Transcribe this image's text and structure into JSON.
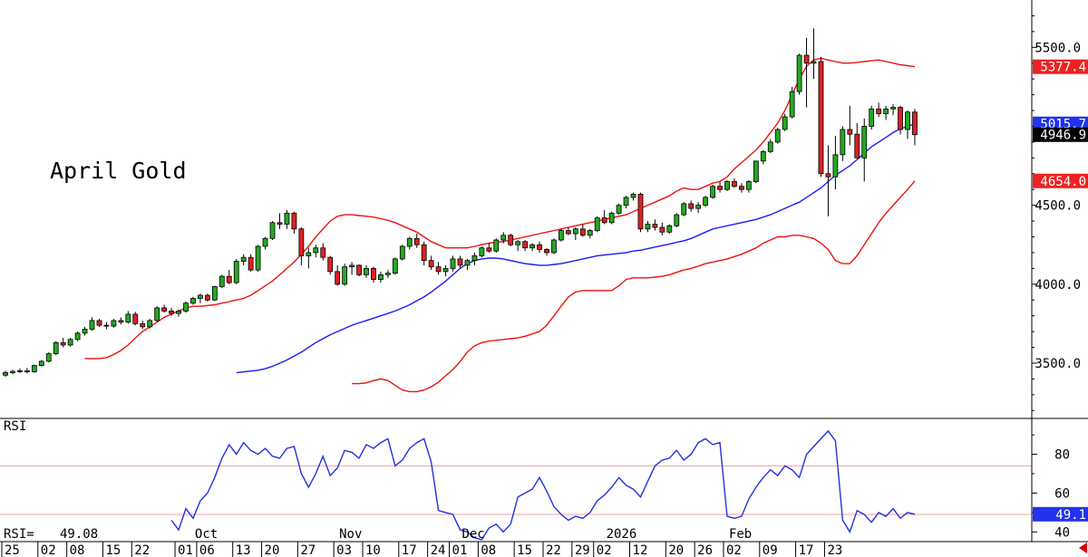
{
  "chart_data": [
    {
      "type": "candlestick",
      "title": "April Gold",
      "ylim": [
        3150,
        5800
      ],
      "yticks": [
        3500,
        4000,
        4500,
        5000,
        5500
      ],
      "ytick_labels": [
        "3500.0",
        "4000.0",
        "4500.0",
        "5000.0",
        "5500.0"
      ],
      "last_price_label": "4946.9",
      "bb_upper_label": "5377.4",
      "bb_lower_label": "4654.0",
      "ma_label": "5015.7",
      "colors": {
        "up": "#22aa22",
        "down": "#dd2222",
        "ma": "#1a1aff",
        "bands": "#ee1111"
      },
      "candles": [
        [
          3424,
          3452,
          3414,
          3440
        ],
        [
          3440,
          3458,
          3430,
          3448
        ],
        [
          3448,
          3465,
          3438,
          3452
        ],
        [
          3452,
          3470,
          3435,
          3445
        ],
        [
          3445,
          3490,
          3440,
          3485
        ],
        [
          3485,
          3520,
          3478,
          3512
        ],
        [
          3512,
          3570,
          3505,
          3560
        ],
        [
          3560,
          3640,
          3550,
          3630
        ],
        [
          3630,
          3660,
          3600,
          3615
        ],
        [
          3615,
          3660,
          3605,
          3650
        ],
        [
          3650,
          3700,
          3640,
          3690
        ],
        [
          3690,
          3730,
          3675,
          3715
        ],
        [
          3715,
          3790,
          3705,
          3770
        ],
        [
          3770,
          3780,
          3730,
          3740
        ],
        [
          3740,
          3760,
          3715,
          3735
        ],
        [
          3735,
          3780,
          3725,
          3770
        ],
        [
          3770,
          3790,
          3745,
          3760
        ],
        [
          3760,
          3830,
          3750,
          3810
        ],
        [
          3810,
          3825,
          3740,
          3750
        ],
        [
          3750,
          3770,
          3715,
          3730
        ],
        [
          3730,
          3780,
          3720,
          3770
        ],
        [
          3770,
          3860,
          3760,
          3850
        ],
        [
          3850,
          3870,
          3820,
          3830
        ],
        [
          3830,
          3850,
          3800,
          3815
        ],
        [
          3815,
          3840,
          3795,
          3830
        ],
        [
          3830,
          3890,
          3820,
          3880
        ],
        [
          3880,
          3920,
          3870,
          3910
        ],
        [
          3910,
          3940,
          3880,
          3930
        ],
        [
          3930,
          3940,
          3890,
          3900
        ],
        [
          3900,
          3990,
          3895,
          3985
        ],
        [
          3985,
          4060,
          3975,
          4050
        ],
        [
          4050,
          4090,
          4000,
          4010
        ],
        [
          4010,
          4160,
          4000,
          4145
        ],
        [
          4145,
          4190,
          4120,
          4170
        ],
        [
          4170,
          4190,
          4080,
          4090
        ],
        [
          4090,
          4250,
          4080,
          4240
        ],
        [
          4240,
          4300,
          4220,
          4290
        ],
        [
          4290,
          4400,
          4280,
          4390
        ],
        [
          4390,
          4450,
          4350,
          4380
        ],
        [
          4380,
          4470,
          4350,
          4450
        ],
        [
          4450,
          4460,
          4320,
          4350
        ],
        [
          4350,
          4360,
          4120,
          4180
        ],
        [
          4180,
          4230,
          4100,
          4200
        ],
        [
          4200,
          4250,
          4170,
          4230
        ],
        [
          4230,
          4260,
          4150,
          4170
        ],
        [
          4170,
          4180,
          4060,
          4080
        ],
        [
          4080,
          4120,
          3990,
          4000
        ],
        [
          4000,
          4130,
          3990,
          4110
        ],
        [
          4110,
          4140,
          4060,
          4120
        ],
        [
          4120,
          4125,
          4050,
          4060
        ],
        [
          4060,
          4120,
          4040,
          4100
        ],
        [
          4100,
          4110,
          4010,
          4030
        ],
        [
          4030,
          4080,
          4010,
          4060
        ],
        [
          4060,
          4090,
          4040,
          4070
        ],
        [
          4070,
          4170,
          4060,
          4160
        ],
        [
          4160,
          4250,
          4150,
          4240
        ],
        [
          4240,
          4300,
          4220,
          4290
        ],
        [
          4290,
          4320,
          4230,
          4250
        ],
        [
          4250,
          4270,
          4120,
          4150
        ],
        [
          4150,
          4180,
          4090,
          4110
        ],
        [
          4110,
          4140,
          4060,
          4080
        ],
        [
          4080,
          4120,
          4050,
          4100
        ],
        [
          4100,
          4180,
          4080,
          4160
        ],
        [
          4160,
          4180,
          4100,
          4120
        ],
        [
          4120,
          4160,
          4090,
          4150
        ],
        [
          4150,
          4200,
          4120,
          4180
        ],
        [
          4180,
          4240,
          4170,
          4230
        ],
        [
          4230,
          4260,
          4200,
          4210
        ],
        [
          4210,
          4290,
          4200,
          4280
        ],
        [
          4280,
          4330,
          4260,
          4310
        ],
        [
          4310,
          4320,
          4240,
          4250
        ],
        [
          4250,
          4280,
          4210,
          4270
        ],
        [
          4270,
          4280,
          4210,
          4230
        ],
        [
          4230,
          4260,
          4210,
          4250
        ],
        [
          4250,
          4270,
          4200,
          4220
        ],
        [
          4220,
          4230,
          4180,
          4200
        ],
        [
          4200,
          4290,
          4190,
          4280
        ],
        [
          4280,
          4350,
          4270,
          4340
        ],
        [
          4340,
          4360,
          4310,
          4320
        ],
        [
          4320,
          4360,
          4280,
          4350
        ],
        [
          4350,
          4380,
          4300,
          4310
        ],
        [
          4310,
          4350,
          4290,
          4340
        ],
        [
          4340,
          4430,
          4330,
          4420
        ],
        [
          4420,
          4470,
          4380,
          4390
        ],
        [
          4390,
          4460,
          4380,
          4450
        ],
        [
          4450,
          4510,
          4440,
          4500
        ],
        [
          4500,
          4560,
          4480,
          4550
        ],
        [
          4550,
          4580,
          4530,
          4570
        ],
        [
          4570,
          4580,
          4330,
          4350
        ],
        [
          4350,
          4400,
          4330,
          4380
        ],
        [
          4380,
          4410,
          4340,
          4360
        ],
        [
          4360,
          4390,
          4310,
          4330
        ],
        [
          4330,
          4380,
          4320,
          4370
        ],
        [
          4370,
          4450,
          4360,
          4440
        ],
        [
          4440,
          4520,
          4430,
          4510
        ],
        [
          4510,
          4530,
          4460,
          4480
        ],
        [
          4480,
          4520,
          4450,
          4500
        ],
        [
          4500,
          4560,
          4490,
          4550
        ],
        [
          4550,
          4630,
          4540,
          4620
        ],
        [
          4620,
          4650,
          4580,
          4600
        ],
        [
          4600,
          4660,
          4590,
          4650
        ],
        [
          4650,
          4670,
          4610,
          4620
        ],
        [
          4620,
          4640,
          4580,
          4600
        ],
        [
          4600,
          4660,
          4580,
          4650
        ],
        [
          4650,
          4780,
          4640,
          4780
        ],
        [
          4780,
          4850,
          4760,
          4840
        ],
        [
          4840,
          4920,
          4830,
          4900
        ],
        [
          4900,
          4990,
          4890,
          4980
        ],
        [
          4980,
          5080,
          4970,
          5060
        ],
        [
          5060,
          5250,
          5050,
          5220
        ],
        [
          5220,
          5460,
          5200,
          5450
        ],
        [
          5450,
          5560,
          5120,
          5400
        ],
        [
          5400,
          5620,
          5300,
          5410
        ],
        [
          5410,
          5440,
          4680,
          4700
        ],
        [
          4700,
          4880,
          4430,
          4680
        ],
        [
          4680,
          4940,
          4600,
          4820
        ],
        [
          4820,
          5000,
          4780,
          4980
        ],
        [
          4980,
          5130,
          4880,
          4950
        ],
        [
          4950,
          5020,
          4810,
          4800
        ],
        [
          4800,
          5050,
          4650,
          5000
        ],
        [
          5000,
          5130,
          4980,
          5110
        ],
        [
          5110,
          5150,
          5060,
          5080
        ],
        [
          5080,
          5130,
          5040,
          5110
        ],
        [
          5110,
          5140,
          5070,
          5120
        ],
        [
          5120,
          5130,
          4950,
          4980
        ],
        [
          4980,
          5100,
          4920,
          5090
        ],
        [
          5090,
          5110,
          4880,
          4947
        ]
      ],
      "bb_upper": [
        3530,
        3528,
        3530,
        3535,
        3555,
        3580,
        3615,
        3660,
        3700,
        3730,
        3760,
        3790,
        3810,
        3830,
        3850,
        3860,
        3860,
        3865,
        3870,
        3880,
        3890,
        3900,
        3910,
        3930,
        3960,
        3990,
        4020,
        4060,
        4100,
        4140,
        4190,
        4240,
        4300,
        4350,
        4400,
        4430,
        4440,
        4440,
        4435,
        4430,
        4425,
        4415,
        4405,
        4390,
        4370,
        4350,
        4330,
        4300,
        4270,
        4250,
        4230,
        4230,
        4230,
        4230,
        4240,
        4250,
        4260,
        4265,
        4270,
        4280,
        4290,
        4300,
        4310,
        4320,
        4330,
        4340,
        4350,
        4360,
        4370,
        4380,
        4390,
        4400,
        4410,
        4420,
        4430,
        4440,
        4460,
        4480,
        4500,
        4520,
        4540,
        4560,
        4590,
        4610,
        4600,
        4600,
        4620,
        4640,
        4650,
        4680,
        4730,
        4770,
        4810,
        4850,
        4900,
        4960,
        5020,
        5100,
        5200,
        5300,
        5380,
        5420,
        5430,
        5420,
        5410,
        5400,
        5400,
        5405,
        5410,
        5415,
        5420,
        5410,
        5400,
        5390,
        5385,
        5377.4
      ],
      "bb_mid": [
        3440,
        3445,
        3450,
        3455,
        3465,
        3480,
        3500,
        3520,
        3545,
        3570,
        3600,
        3630,
        3655,
        3680,
        3700,
        3720,
        3740,
        3755,
        3770,
        3785,
        3800,
        3815,
        3830,
        3850,
        3870,
        3895,
        3920,
        3950,
        3985,
        4020,
        4060,
        4100,
        4130,
        4150,
        4160,
        4165,
        4165,
        4160,
        4150,
        4140,
        4130,
        4125,
        4120,
        4120,
        4125,
        4130,
        4140,
        4150,
        4160,
        4170,
        4180,
        4185,
        4190,
        4195,
        4200,
        4210,
        4215,
        4225,
        4235,
        4245,
        4255,
        4265,
        4275,
        4290,
        4310,
        4330,
        4350,
        4360,
        4370,
        4380,
        4390,
        4400,
        4410,
        4425,
        4440,
        4460,
        4480,
        4500,
        4520,
        4550,
        4580,
        4610,
        4650,
        4690,
        4720,
        4750,
        4790,
        4830,
        4870,
        4900,
        4930,
        4960,
        4985,
        5000,
        5015.7
      ],
      "bb_lower": [
        3370,
        3370,
        3375,
        3390,
        3400,
        3390,
        3360,
        3330,
        3320,
        3320,
        3330,
        3350,
        3380,
        3420,
        3460,
        3510,
        3570,
        3610,
        3630,
        3640,
        3645,
        3650,
        3655,
        3660,
        3670,
        3685,
        3700,
        3740,
        3800,
        3860,
        3920,
        3950,
        3960,
        3960,
        3960,
        3960,
        3960,
        3990,
        4030,
        4040,
        4040,
        4040,
        4045,
        4050,
        4060,
        4075,
        4090,
        4100,
        4115,
        4130,
        4140,
        4150,
        4160,
        4175,
        4190,
        4210,
        4230,
        4260,
        4280,
        4300,
        4300,
        4310,
        4310,
        4300,
        4290,
        4260,
        4220,
        4150,
        4130,
        4130,
        4180,
        4250,
        4320,
        4390,
        4450,
        4500,
        4550,
        4600,
        4654.0
      ],
      "ytick_count": 5
    },
    {
      "type": "line",
      "title": "RSI",
      "readout_label": "RSI=",
      "readout_value": "49.08",
      "ylim": [
        35,
        98
      ],
      "yticks": [
        40,
        60,
        80
      ],
      "ytick_labels": [
        "40",
        "60",
        "80"
      ],
      "last_value_label": "49.1",
      "ref_lines": [
        49,
        74
      ],
      "values": [
        46,
        41,
        52,
        47,
        56,
        60,
        68,
        78,
        85,
        80,
        86,
        82,
        80,
        83,
        79,
        78,
        83,
        84,
        70,
        63,
        70,
        79,
        69,
        73,
        82,
        81,
        78,
        85,
        83,
        86,
        88,
        74,
        77,
        83,
        86,
        88,
        76,
        51,
        50,
        49,
        41,
        40,
        37,
        36,
        42,
        44,
        40,
        44,
        58,
        60,
        62,
        68,
        61,
        53,
        49,
        46,
        48,
        47,
        50,
        56,
        59,
        63,
        68,
        64,
        62,
        58,
        66,
        74,
        77,
        78,
        82,
        77,
        80,
        86,
        88,
        85,
        86,
        48,
        47,
        48,
        57,
        63,
        68,
        72,
        69,
        74,
        72,
        68,
        80,
        84,
        88,
        92,
        87,
        46,
        40,
        51,
        49,
        45,
        50,
        48,
        52,
        47,
        50,
        49.1
      ],
      "color": "#2233dd"
    }
  ],
  "x_axis_labels": [
    {
      "text": "25",
      "i": 0
    },
    {
      "text": "02",
      "i": 5
    },
    {
      "text": "08",
      "i": 9
    },
    {
      "text": "15",
      "i": 14
    },
    {
      "text": "22",
      "i": 18
    },
    {
      "text": "01",
      "i": 24
    },
    {
      "text": "06",
      "i": 27
    },
    {
      "text": "13",
      "i": 32
    },
    {
      "text": "20",
      "i": 36
    },
    {
      "text": "27",
      "i": 41
    },
    {
      "text": "03",
      "i": 46
    },
    {
      "text": "10",
      "i": 50
    },
    {
      "text": "17",
      "i": 55
    },
    {
      "text": "24",
      "i": 59
    },
    {
      "text": "01",
      "i": 62
    },
    {
      "text": "08",
      "i": 66
    },
    {
      "text": "15",
      "i": 71
    },
    {
      "text": "22",
      "i": 75
    },
    {
      "text": "29",
      "i": 79
    },
    {
      "text": "02",
      "i": 82
    },
    {
      "text": "12",
      "i": 87
    },
    {
      "text": "20",
      "i": 92
    },
    {
      "text": "26",
      "i": 96
    },
    {
      "text": "02",
      "i": 100
    },
    {
      "text": "09",
      "i": 105
    },
    {
      "text": "17",
      "i": 110
    },
    {
      "text": "23",
      "i": 114
    }
  ],
  "month_labels": [
    {
      "text": "Oct",
      "i": 27
    },
    {
      "text": "Nov",
      "i": 47
    },
    {
      "text": "Dec",
      "i": 64
    },
    {
      "text": "2026",
      "i": 84
    },
    {
      "text": "Feb",
      "i": 101
    }
  ]
}
